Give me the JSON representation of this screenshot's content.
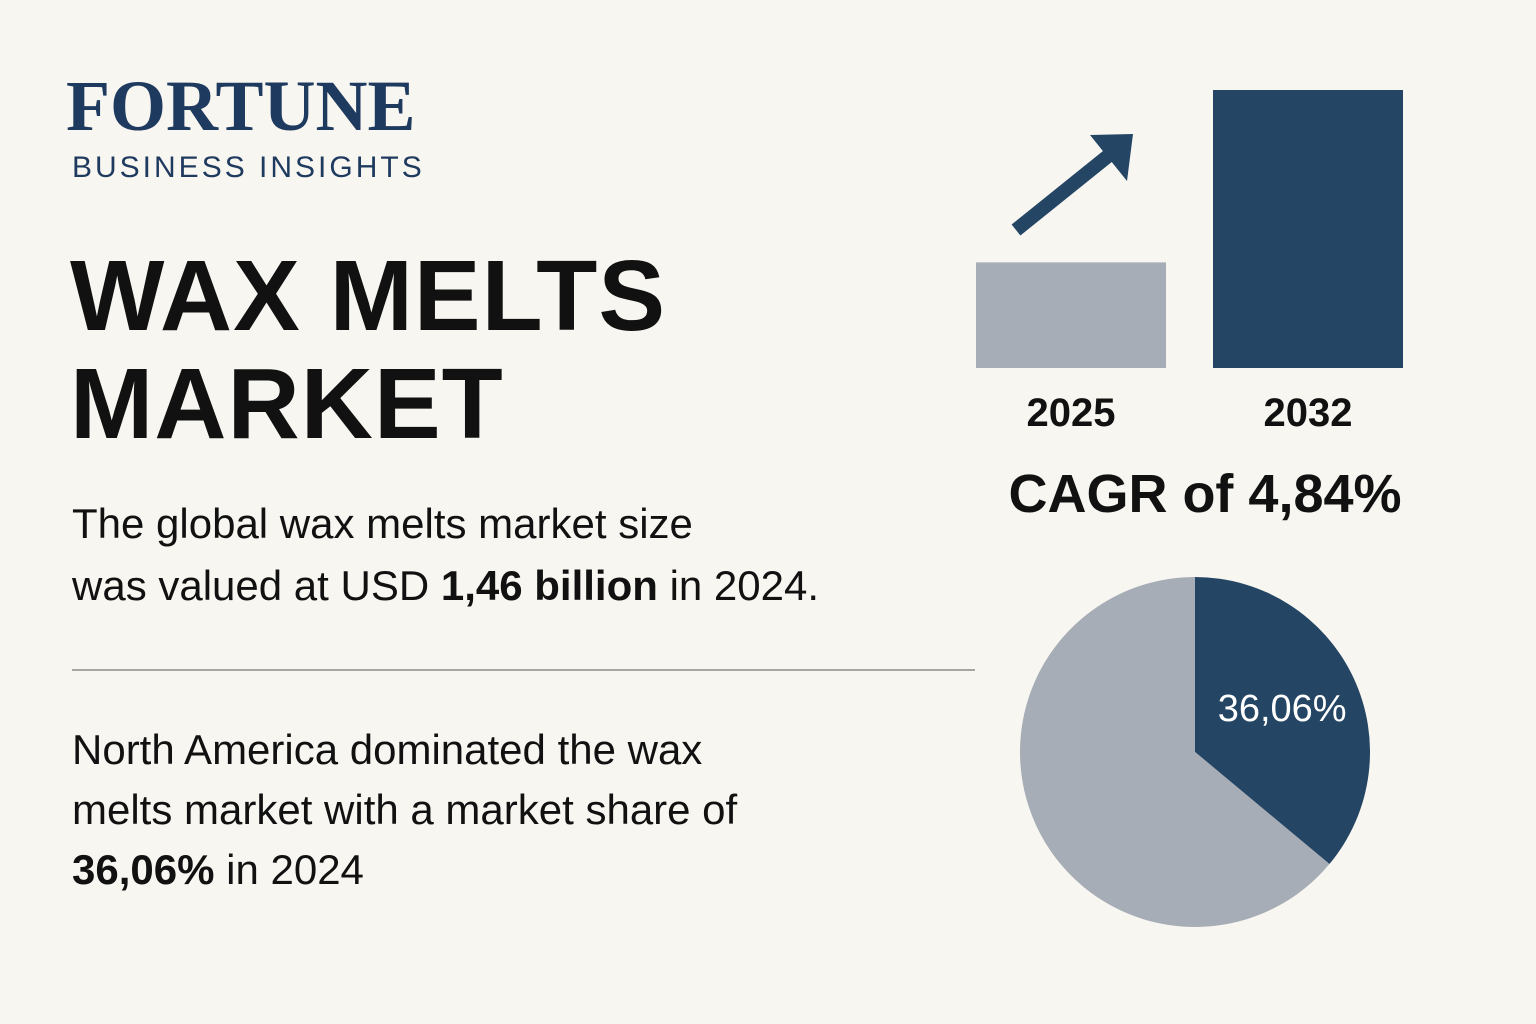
{
  "logo": {
    "name": "FORTUNE",
    "subtitle": "BUSINESS INSIGHTS"
  },
  "title_lines": [
    "WAX MELTS",
    "MARKET"
  ],
  "body_1": {
    "lines": [
      [
        {
          "text": "The global wax melts market size"
        }
      ],
      [
        {
          "text": "was valued at USD "
        },
        {
          "text": "1,46 billion",
          "bold": true
        },
        {
          "text": " in 2024."
        }
      ]
    ]
  },
  "body_2": {
    "lines": [
      [
        {
          "text": "North America dominated the wax"
        }
      ],
      [
        {
          "text": "melts market with a market share of"
        }
      ],
      [
        {
          "text": "36,06%",
          "bold": true
        },
        {
          "text": " in 2024"
        }
      ]
    ]
  },
  "chart_data": [
    {
      "type": "bar",
      "categories": [
        "2025",
        "2032"
      ],
      "values": [
        38,
        100
      ],
      "colors": [
        "#a7adb6",
        "#244564"
      ],
      "ylim": [
        0,
        100
      ],
      "caption": "CAGR of 4,84%"
    },
    {
      "type": "pie",
      "categories": [
        null,
        null
      ],
      "values": [
        36.06,
        63.94
      ],
      "value_labels": [
        "36,06%",
        null
      ],
      "colors": [
        "#244564",
        "#a7adb6"
      ]
    }
  ]
}
